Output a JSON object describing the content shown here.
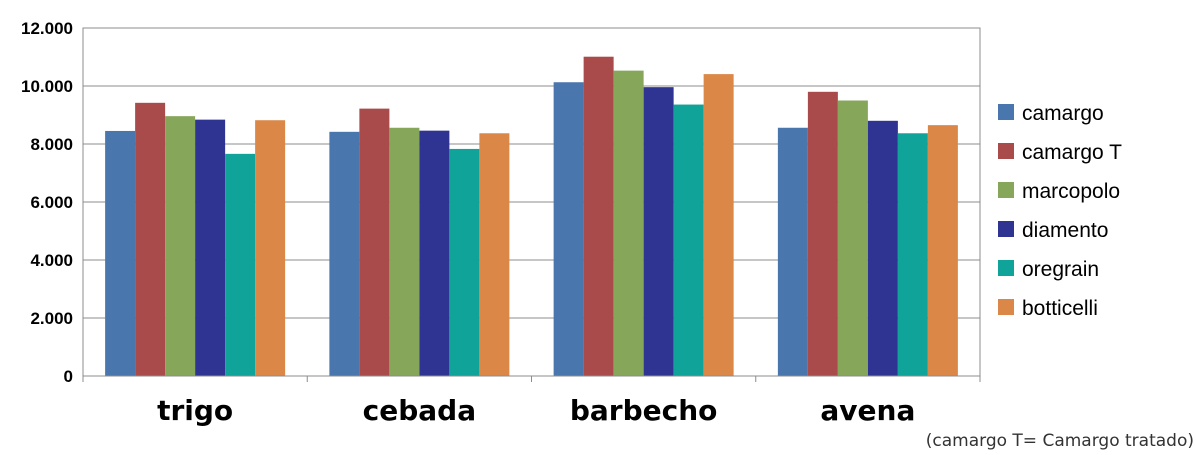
{
  "chart_data": {
    "type": "bar",
    "categories": [
      "trigo",
      "cebada",
      "barbecho",
      "avena"
    ],
    "series": [
      {
        "name": "camargo",
        "color": "#4A76AE",
        "values": [
          8450,
          8420,
          10130,
          8560
        ]
      },
      {
        "name": "camargo T",
        "color": "#A94B4B",
        "values": [
          9420,
          9220,
          11010,
          9800
        ]
      },
      {
        "name": "marcopolo",
        "color": "#86A65A",
        "values": [
          8960,
          8560,
          10530,
          9500
        ]
      },
      {
        "name": "diamento",
        "color": "#2F3392",
        "values": [
          8840,
          8460,
          9960,
          8800
        ]
      },
      {
        "name": "oregrain",
        "color": "#10A39A",
        "values": [
          7660,
          7830,
          9360,
          8370
        ]
      },
      {
        "name": "botticelli",
        "color": "#DA8748",
        "values": [
          8820,
          8370,
          10410,
          8650
        ]
      }
    ],
    "ylim": [
      0,
      12000
    ],
    "yticks": [
      0,
      2000,
      4000,
      6000,
      8000,
      10000,
      12000
    ],
    "ytick_labels": [
      "0",
      "2.000",
      "4.000",
      "6.000",
      "8.000",
      "10.000",
      "12.000"
    ],
    "grid": true,
    "legend_position": "right",
    "title": "",
    "xlabel": "",
    "ylabel": "",
    "footnote": "(camargo T= Camargo tratado)"
  }
}
